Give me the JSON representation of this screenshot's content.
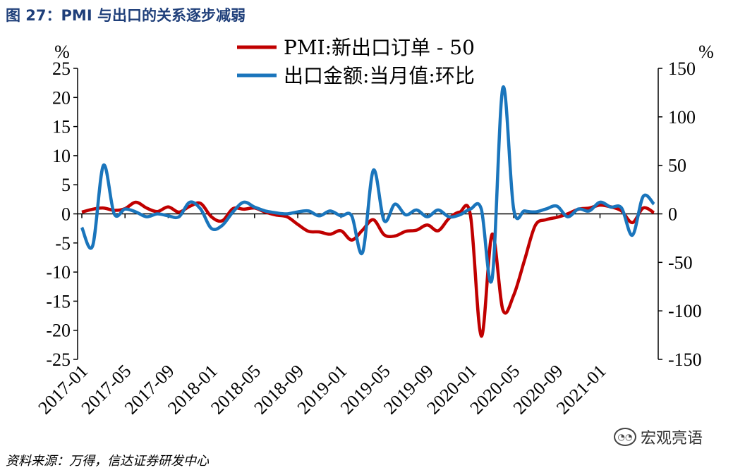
{
  "header": {
    "title": "图 27：PMI 与出口的关系逐步减弱"
  },
  "footer": {
    "source": "资料来源：万得，信达证券研发中心"
  },
  "watermark": {
    "text": "宏观亮语"
  },
  "chart_data": {
    "type": "line",
    "left_axis": {
      "unit": "%",
      "ylim": [
        -25,
        25
      ],
      "ticks": [
        "25",
        "20",
        "15",
        "10",
        "5",
        "0",
        "-5",
        "-10",
        "-15",
        "-20",
        "-25"
      ]
    },
    "right_axis": {
      "unit": "%",
      "ylim": [
        -150,
        150
      ],
      "ticks": [
        "150",
        "100",
        "50",
        "0",
        "-50",
        "-100",
        "-150"
      ]
    },
    "x_ticks": [
      "2017-01",
      "2017-05",
      "2017-09",
      "2018-01",
      "2018-05",
      "2018-09",
      "2019-01",
      "2019-05",
      "2019-09",
      "2020-01",
      "2020-05",
      "2020-09",
      "2021-01"
    ],
    "x_start": "2017-01",
    "series": [
      {
        "name": "PMI:新出口订单 - 50",
        "color": "#c00000",
        "axis": "left",
        "values": [
          0.3,
          0.8,
          1.0,
          0.6,
          0.9,
          2.0,
          1.0,
          0.4,
          1.2,
          0.3,
          1.3,
          1.8,
          -0.5,
          -1.2,
          0.9,
          0.8,
          1.0,
          0.3,
          -0.2,
          -0.5,
          -1.8,
          -3.0,
          -3.1,
          -3.5,
          -2.9,
          -4.5,
          -2.8,
          -1.0,
          -3.6,
          -3.8,
          -3.0,
          -2.8,
          -1.9,
          -2.9,
          -0.8,
          0.3,
          -0.3,
          -21.0,
          -3.5,
          -16.5,
          -14.0,
          -8.0,
          -2.0,
          -1.0,
          -0.6,
          0.0,
          0.8,
          1.0,
          1.5,
          1.2,
          0.5,
          -1.5,
          1.0,
          0.2
        ]
      },
      {
        "name": "出口金额:当月值:环比",
        "color": "#1a75bc",
        "axis": "right",
        "values": [
          -14,
          -33,
          50,
          0,
          5,
          2,
          -3,
          0,
          -2,
          -3,
          12,
          5,
          -15,
          -12,
          2,
          12,
          7,
          3,
          1,
          0,
          2,
          3,
          -2,
          3,
          -2,
          -2,
          -40,
          45,
          -7,
          10,
          -1,
          4,
          -3,
          4,
          -3,
          -1,
          5,
          5,
          -67,
          130,
          5,
          3,
          2,
          5,
          8,
          -3,
          5,
          3,
          12,
          7,
          6,
          -22,
          18,
          10
        ]
      }
    ]
  }
}
